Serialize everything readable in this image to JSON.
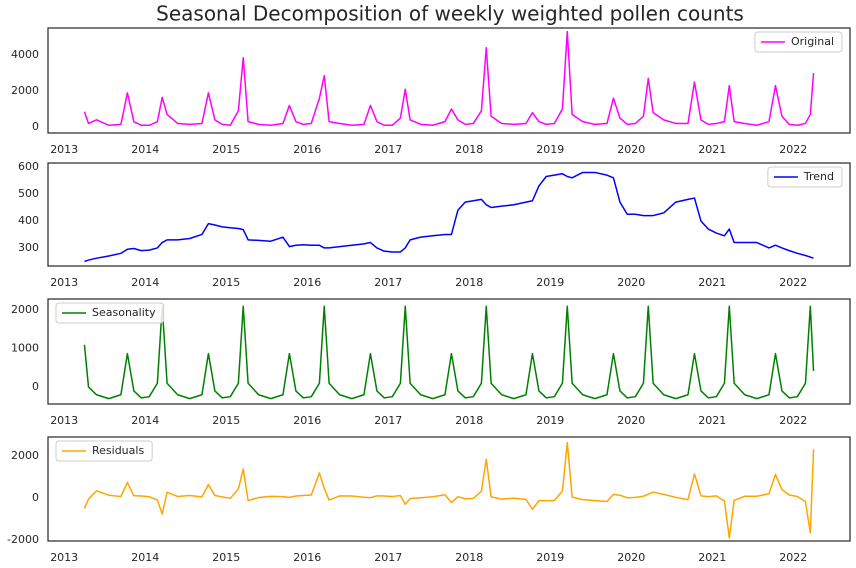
{
  "chart_data": [
    {
      "type": "line",
      "title": "Seasonal Decomposition of weekly weighted pollen counts",
      "legend": "upper right",
      "x": [
        2013.25,
        2013.3,
        2013.4,
        2013.55,
        2013.7,
        2013.78,
        2013.86,
        2013.95,
        2014.05,
        2014.15,
        2014.21,
        2014.27,
        2014.4,
        2014.55,
        2014.7,
        2014.78,
        2014.86,
        2014.95,
        2015.05,
        2015.15,
        2015.21,
        2015.27,
        2015.4,
        2015.55,
        2015.7,
        2015.78,
        2015.86,
        2015.95,
        2016.05,
        2016.15,
        2016.21,
        2016.27,
        2016.4,
        2016.55,
        2016.7,
        2016.78,
        2016.86,
        2016.95,
        2017.05,
        2017.15,
        2017.21,
        2017.27,
        2017.4,
        2017.55,
        2017.7,
        2017.78,
        2017.86,
        2017.95,
        2018.05,
        2018.15,
        2018.21,
        2018.27,
        2018.4,
        2018.55,
        2018.7,
        2018.78,
        2018.86,
        2018.95,
        2019.05,
        2019.15,
        2019.21,
        2019.27,
        2019.4,
        2019.55,
        2019.7,
        2019.78,
        2019.86,
        2019.95,
        2020.05,
        2020.15,
        2020.21,
        2020.27,
        2020.4,
        2020.55,
        2020.7,
        2020.78,
        2020.86,
        2020.95,
        2021.05,
        2021.15,
        2021.21,
        2021.27,
        2021.4,
        2021.55,
        2021.7,
        2021.78,
        2021.86,
        2021.95,
        2022.05,
        2022.15,
        2022.21,
        2022.25
      ],
      "series": [
        {
          "name": "Original",
          "color": "#ff00ff",
          "values": [
            850,
            200,
            400,
            100,
            150,
            1900,
            300,
            100,
            100,
            300,
            1650,
            700,
            200,
            150,
            200,
            1900,
            400,
            150,
            100,
            900,
            3850,
            300,
            150,
            100,
            200,
            1200,
            300,
            150,
            200,
            1600,
            2850,
            300,
            200,
            100,
            150,
            1200,
            300,
            100,
            100,
            500,
            2100,
            400,
            150,
            100,
            300,
            1000,
            400,
            150,
            200,
            900,
            4400,
            600,
            200,
            150,
            200,
            800,
            300,
            150,
            200,
            1000,
            5300,
            700,
            300,
            150,
            200,
            1600,
            500,
            150,
            200,
            600,
            2700,
            800,
            400,
            200,
            200,
            2500,
            400,
            150,
            200,
            300,
            2300,
            300,
            200,
            100,
            300,
            2300,
            600,
            150,
            100,
            200,
            700,
            3000
          ]
        }
      ],
      "xlim": [
        2012.8,
        2022.7
      ],
      "xticks": [
        2013,
        2014,
        2015,
        2016,
        2017,
        2018,
        2019,
        2020,
        2021,
        2022
      ],
      "ylim": [
        -330,
        5500
      ],
      "yticks": [
        0,
        2000,
        4000
      ]
    },
    {
      "type": "line",
      "legend": "upper right",
      "x": [
        2013.25,
        2013.3,
        2013.4,
        2013.55,
        2013.7,
        2013.78,
        2013.86,
        2013.95,
        2014.05,
        2014.15,
        2014.21,
        2014.27,
        2014.4,
        2014.55,
        2014.7,
        2014.78,
        2014.86,
        2014.95,
        2015.05,
        2015.15,
        2015.21,
        2015.27,
        2015.4,
        2015.55,
        2015.7,
        2015.78,
        2015.86,
        2015.95,
        2016.05,
        2016.15,
        2016.21,
        2016.27,
        2016.4,
        2016.55,
        2016.7,
        2016.78,
        2016.86,
        2016.95,
        2017.05,
        2017.15,
        2017.21,
        2017.27,
        2017.4,
        2017.55,
        2017.7,
        2017.78,
        2017.86,
        2017.95,
        2018.05,
        2018.15,
        2018.21,
        2018.27,
        2018.4,
        2018.55,
        2018.7,
        2018.78,
        2018.86,
        2018.95,
        2019.05,
        2019.15,
        2019.21,
        2019.27,
        2019.4,
        2019.55,
        2019.7,
        2019.78,
        2019.86,
        2019.95,
        2020.05,
        2020.15,
        2020.21,
        2020.27,
        2020.4,
        2020.55,
        2020.7,
        2020.78,
        2020.86,
        2020.95,
        2021.05,
        2021.15,
        2021.21,
        2021.27,
        2021.4,
        2021.55,
        2021.7,
        2021.78,
        2021.86,
        2021.95,
        2022.05,
        2022.15,
        2022.21,
        2022.25
      ],
      "series": [
        {
          "name": "Trend",
          "color": "#0000ff",
          "values": [
            250,
            255,
            262,
            270,
            280,
            295,
            298,
            290,
            292,
            300,
            320,
            330,
            330,
            335,
            350,
            390,
            385,
            378,
            375,
            372,
            368,
            330,
            328,
            325,
            340,
            305,
            310,
            312,
            310,
            310,
            300,
            300,
            305,
            310,
            315,
            320,
            300,
            288,
            285,
            285,
            300,
            330,
            340,
            345,
            350,
            350,
            440,
            470,
            475,
            480,
            460,
            450,
            455,
            460,
            470,
            475,
            530,
            565,
            570,
            575,
            565,
            560,
            580,
            580,
            570,
            560,
            470,
            425,
            425,
            420,
            420,
            420,
            430,
            470,
            480,
            485,
            400,
            370,
            355,
            345,
            370,
            320,
            320,
            320,
            300,
            310,
            300,
            290,
            280,
            272,
            266,
            262
          ]
        }
      ],
      "xlim": [
        2012.8,
        2022.7
      ],
      "xticks": [
        2013,
        2014,
        2015,
        2016,
        2017,
        2018,
        2019,
        2020,
        2021,
        2022
      ],
      "ylim": [
        233,
        615
      ],
      "yticks": [
        300,
        400,
        500,
        600
      ]
    },
    {
      "type": "line",
      "legend": "upper left",
      "x": [
        2013.25,
        2013.3,
        2013.4,
        2013.55,
        2013.7,
        2013.78,
        2013.86,
        2013.95,
        2014.05,
        2014.15,
        2014.21,
        2014.27,
        2014.4,
        2014.55,
        2014.7,
        2014.78,
        2014.86,
        2014.95,
        2015.05,
        2015.15,
        2015.21,
        2015.27,
        2015.4,
        2015.55,
        2015.7,
        2015.78,
        2015.86,
        2015.95,
        2016.05,
        2016.15,
        2016.21,
        2016.27,
        2016.4,
        2016.55,
        2016.7,
        2016.78,
        2016.86,
        2016.95,
        2017.05,
        2017.15,
        2017.21,
        2017.27,
        2017.4,
        2017.55,
        2017.7,
        2017.78,
        2017.86,
        2017.95,
        2018.05,
        2018.15,
        2018.21,
        2018.27,
        2018.4,
        2018.55,
        2018.7,
        2018.78,
        2018.86,
        2018.95,
        2019.05,
        2019.15,
        2019.21,
        2019.27,
        2019.4,
        2019.55,
        2019.7,
        2019.78,
        2019.86,
        2019.95,
        2020.05,
        2020.15,
        2020.21,
        2020.27,
        2020.4,
        2020.55,
        2020.7,
        2020.78,
        2020.86,
        2020.95,
        2021.05,
        2021.15,
        2021.21,
        2021.27,
        2021.4,
        2021.55,
        2021.7,
        2021.78,
        2021.86,
        2021.95,
        2022.05,
        2022.15,
        2022.21,
        2022.25
      ],
      "series": [
        {
          "name": "Seasonality",
          "color": "#008000",
          "values": [
            1100,
            0,
            -200,
            -300,
            -200,
            870,
            -100,
            -280,
            -250,
            100,
            2100,
            100,
            -200,
            -300,
            -200,
            870,
            -100,
            -280,
            -250,
            100,
            2100,
            100,
            -200,
            -300,
            -200,
            870,
            -100,
            -280,
            -250,
            100,
            2100,
            100,
            -200,
            -300,
            -200,
            870,
            -100,
            -280,
            -250,
            100,
            2100,
            100,
            -200,
            -300,
            -200,
            870,
            -100,
            -280,
            -250,
            100,
            2100,
            100,
            -200,
            -300,
            -200,
            870,
            -100,
            -280,
            -250,
            100,
            2100,
            100,
            -200,
            -300,
            -200,
            870,
            -100,
            -280,
            -250,
            100,
            2100,
            100,
            -200,
            -300,
            -200,
            870,
            -100,
            -280,
            -250,
            100,
            2100,
            100,
            -200,
            -300,
            -200,
            870,
            -100,
            -280,
            -250,
            100,
            2100,
            420
          ]
        }
      ],
      "xlim": [
        2012.8,
        2022.7
      ],
      "xticks": [
        2013,
        2014,
        2015,
        2016,
        2017,
        2018,
        2019,
        2020,
        2021,
        2022
      ],
      "ylim": [
        -440,
        2290
      ],
      "yticks": [
        0,
        1000,
        2000
      ]
    },
    {
      "type": "line",
      "legend": "upper left",
      "x": [
        2013.25,
        2013.3,
        2013.4,
        2013.55,
        2013.7,
        2013.78,
        2013.86,
        2013.95,
        2014.05,
        2014.15,
        2014.21,
        2014.27,
        2014.4,
        2014.55,
        2014.7,
        2014.78,
        2014.86,
        2014.95,
        2015.05,
        2015.15,
        2015.21,
        2015.27,
        2015.4,
        2015.55,
        2015.7,
        2015.78,
        2015.86,
        2015.95,
        2016.05,
        2016.15,
        2016.21,
        2016.27,
        2016.4,
        2016.55,
        2016.7,
        2016.78,
        2016.86,
        2016.95,
        2017.05,
        2017.15,
        2017.21,
        2017.27,
        2017.4,
        2017.55,
        2017.7,
        2017.78,
        2017.86,
        2017.95,
        2018.05,
        2018.15,
        2018.21,
        2018.27,
        2018.4,
        2018.55,
        2018.7,
        2018.78,
        2018.86,
        2018.95,
        2019.05,
        2019.15,
        2019.21,
        2019.27,
        2019.4,
        2019.55,
        2019.7,
        2019.78,
        2019.86,
        2019.95,
        2020.05,
        2020.15,
        2020.21,
        2020.27,
        2020.4,
        2020.55,
        2020.7,
        2020.78,
        2020.86,
        2020.95,
        2021.05,
        2021.15,
        2021.21,
        2021.27,
        2021.4,
        2021.55,
        2021.7,
        2021.78,
        2021.86,
        2021.95,
        2022.05,
        2022.15,
        2022.21,
        2022.25
      ],
      "series": [
        {
          "name": "Residuals",
          "color": "#ffa500",
          "values": [
            -500,
            -55,
            338,
            130,
            70,
            735,
            102,
            90,
            58,
            -100,
            -770,
            270,
            70,
            115,
            50,
            640,
            115,
            52,
            -25,
            428,
            1382,
            -130,
            22,
            75,
            60,
            25,
            90,
            118,
            140,
            1190,
            450,
            -100,
            95,
            90,
            35,
            10,
            100,
            92,
            65,
            115,
            -300,
            -30,
            10,
            55,
            150,
            -220,
            60,
            -40,
            -25,
            320,
            1840,
            50,
            -55,
            -10,
            -70,
            -545,
            -130,
            -135,
            -120,
            325,
            2635,
            40,
            -80,
            -130,
            -170,
            170,
            130,
            5,
            25,
            80,
            180,
            280,
            170,
            30,
            -80,
            1145,
            100,
            60,
            95,
            -145,
            -1900,
            -120,
            80,
            80,
            200,
            1120,
            400,
            140,
            70,
            -172,
            -1666,
            2318
          ]
        }
      ],
      "xlim": [
        2012.8,
        2022.7
      ],
      "xticks": [
        2013,
        2014,
        2015,
        2016,
        2017,
        2018,
        2019,
        2020,
        2021,
        2022
      ],
      "ylim": [
        -2050,
        2900
      ],
      "yticks": [
        -2000,
        0,
        2000
      ]
    }
  ]
}
